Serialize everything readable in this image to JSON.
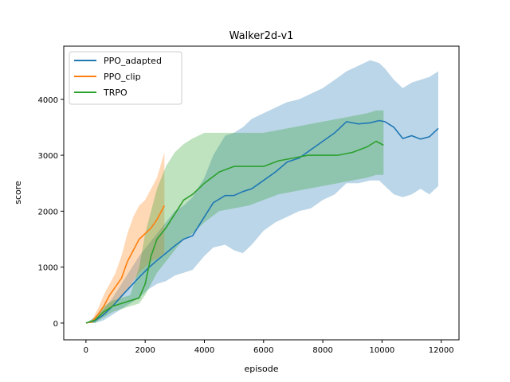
{
  "chart_data": {
    "type": "line",
    "title": "Walker2d-v1",
    "xlabel": "episode",
    "ylabel": "score",
    "xlim": [
      -750,
      12600
    ],
    "ylim": [
      -300,
      4950
    ],
    "xticks": [
      0,
      2000,
      4000,
      6000,
      8000,
      10000,
      12000
    ],
    "yticks": [
      0,
      1000,
      2000,
      3000,
      4000
    ],
    "xtick_labels": [
      "0",
      "2000",
      "4000",
      "6000",
      "8000",
      "10000",
      "12000"
    ],
    "ytick_labels": [
      "0",
      "1000",
      "2000",
      "3000",
      "4000"
    ],
    "legend_position": "upper-left",
    "grid": false,
    "series": [
      {
        "name": "PPO_adapted",
        "color": "#1f77b4",
        "band_opacity": 0.3,
        "x": [
          0,
          300,
          600,
          900,
          1200,
          1500,
          1800,
          2100,
          2400,
          2700,
          3000,
          3300,
          3600,
          4000,
          4300,
          4700,
          5000,
          5300,
          5600,
          6000,
          6400,
          6800,
          7200,
          7600,
          8000,
          8400,
          8800,
          9200,
          9600,
          9900,
          10100,
          10400,
          10700,
          11000,
          11300,
          11600,
          11900
        ],
        "mean": [
          0,
          40,
          150,
          300,
          480,
          650,
          820,
          980,
          1120,
          1250,
          1380,
          1500,
          1560,
          1900,
          2150,
          2280,
          2280,
          2350,
          2400,
          2550,
          2700,
          2880,
          2950,
          3100,
          3250,
          3400,
          3600,
          3560,
          3580,
          3620,
          3600,
          3500,
          3300,
          3350,
          3290,
          3330,
          3480
        ],
        "lower": [
          0,
          0,
          50,
          150,
          250,
          350,
          450,
          600,
          700,
          750,
          850,
          900,
          950,
          1200,
          1350,
          1400,
          1300,
          1250,
          1400,
          1650,
          1800,
          1900,
          2000,
          2050,
          2200,
          2300,
          2500,
          2500,
          2550,
          2550,
          2450,
          2300,
          2250,
          2300,
          2400,
          2300,
          2450
        ],
        "upper": [
          0,
          100,
          250,
          450,
          700,
          950,
          1200,
          1400,
          1600,
          1800,
          2000,
          2100,
          2250,
          2600,
          3000,
          3350,
          3400,
          3500,
          3650,
          3750,
          3850,
          3950,
          4000,
          4100,
          4200,
          4350,
          4500,
          4600,
          4700,
          4650,
          4550,
          4350,
          4200,
          4300,
          4350,
          4400,
          4500
        ]
      },
      {
        "name": "PPO_clip",
        "color": "#ff7f0e",
        "band_opacity": 0.3,
        "x": [
          0,
          200,
          400,
          600,
          800,
          1000,
          1200,
          1400,
          1600,
          1800,
          2000,
          2200,
          2400,
          2650
        ],
        "mean": [
          0,
          20,
          150,
          300,
          500,
          650,
          800,
          1100,
          1300,
          1500,
          1600,
          1700,
          1850,
          2100
        ],
        "lower": [
          0,
          0,
          50,
          150,
          250,
          350,
          450,
          600,
          750,
          900,
          1000,
          1100,
          1150,
          1250
        ],
        "upper": [
          0,
          50,
          250,
          500,
          700,
          900,
          1200,
          1600,
          1900,
          2100,
          2200,
          2400,
          2600,
          3050
        ]
      },
      {
        "name": "TRPO",
        "color": "#2ca02c",
        "band_opacity": 0.3,
        "x": [
          0,
          300,
          600,
          900,
          1200,
          1500,
          1800,
          2000,
          2200,
          2400,
          2700,
          3000,
          3300,
          3600,
          4000,
          4500,
          5000,
          5500,
          6000,
          6500,
          7000,
          7500,
          8000,
          8500,
          9000,
          9500,
          9800,
          10050
        ],
        "mean": [
          0,
          50,
          200,
          300,
          350,
          400,
          450,
          700,
          1200,
          1500,
          1700,
          1950,
          2200,
          2300,
          2500,
          2700,
          2800,
          2800,
          2800,
          2900,
          2950,
          3000,
          3000,
          3000,
          3050,
          3150,
          3250,
          3180
        ],
        "lower": [
          0,
          0,
          100,
          200,
          250,
          300,
          350,
          500,
          700,
          900,
          1100,
          1300,
          1500,
          1600,
          1800,
          2000,
          2050,
          2100,
          2200,
          2300,
          2350,
          2400,
          2450,
          2500,
          2550,
          2600,
          2650,
          2650
        ],
        "upper": [
          0,
          100,
          300,
          400,
          450,
          500,
          1000,
          1600,
          2000,
          2400,
          2800,
          3050,
          3200,
          3300,
          3400,
          3400,
          3400,
          3400,
          3400,
          3450,
          3500,
          3550,
          3600,
          3650,
          3700,
          3750,
          3800,
          3800
        ]
      }
    ]
  }
}
